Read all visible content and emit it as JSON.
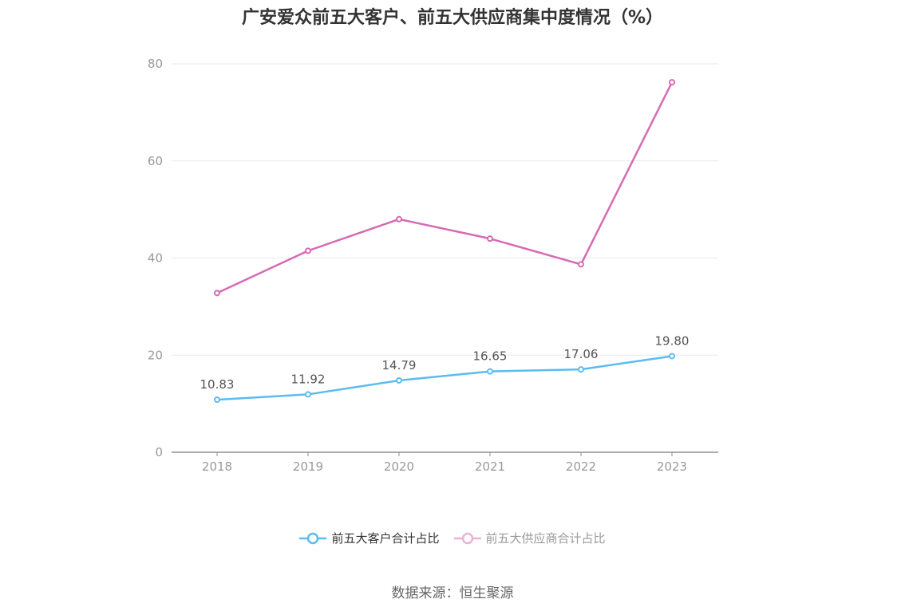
{
  "title": "广安爱众前五大客户、前五大供应商集中度情况（%）",
  "source": "数据来源：恒生聚源",
  "chart_data": {
    "type": "line",
    "categories": [
      "2018",
      "2019",
      "2020",
      "2021",
      "2022",
      "2023"
    ],
    "ylim": [
      0,
      80
    ],
    "yticks": [
      "0",
      "20",
      "40",
      "60",
      "80"
    ],
    "grid": true,
    "legend_position": "bottom",
    "series": [
      {
        "name": "前五大客户合计占比",
        "color": "#5bbcf0",
        "values": [
          10.83,
          11.92,
          14.79,
          16.65,
          17.06,
          19.8
        ],
        "labels": [
          "10.83",
          "11.92",
          "14.79",
          "16.65",
          "17.06",
          "19.80"
        ]
      },
      {
        "name": "前五大供应商合计占比",
        "color": "#d76ab3",
        "values": [
          32.8,
          41.5,
          48.0,
          44.0,
          38.7,
          76.2
        ]
      }
    ]
  }
}
